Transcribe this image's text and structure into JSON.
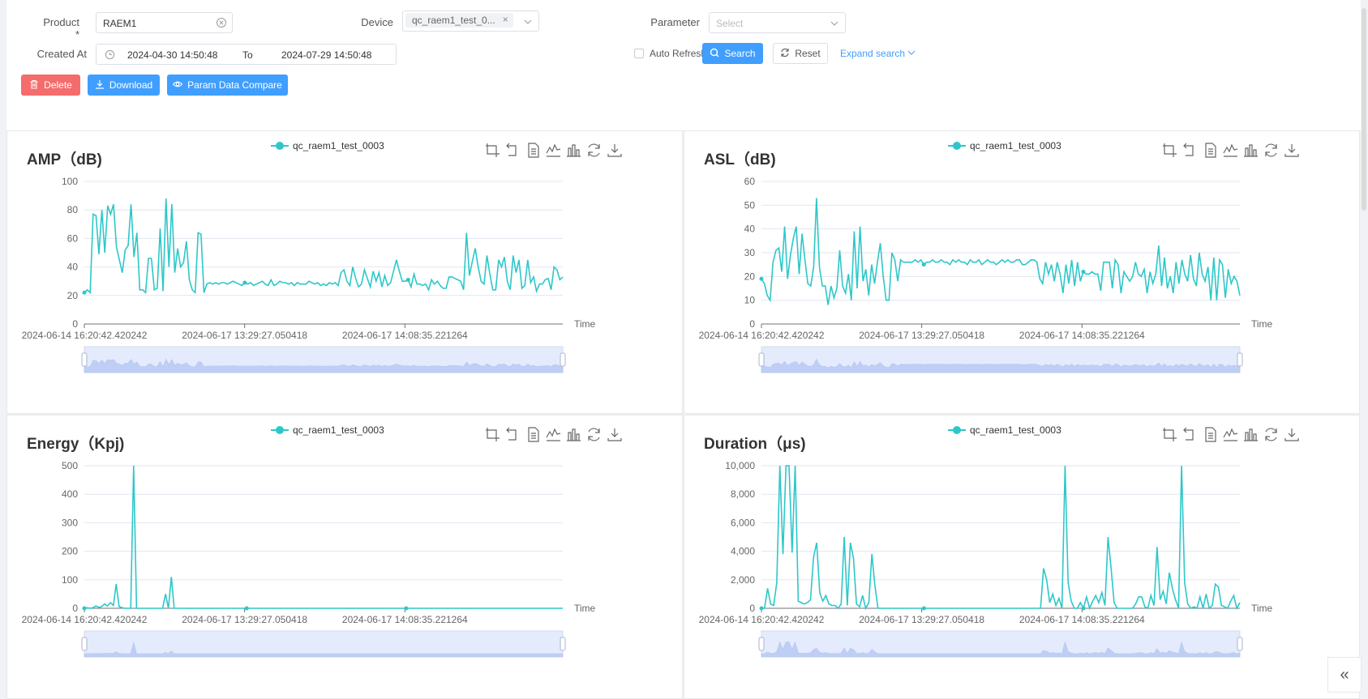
{
  "filters": {
    "product_label": "Product *",
    "product_value": "RAEM1",
    "device_label": "Device",
    "device_tag": "qc_raem1_test_0...",
    "parameter_label": "Parameter",
    "parameter_placeholder": "Select",
    "created_label": "Created At",
    "date_from": "2024-04-30 14:50:48",
    "to_label": "To",
    "date_to": "2024-07-29 14:50:48",
    "auto_refresh_label": "Auto Refresh",
    "search_label": "Search",
    "reset_label": "Reset",
    "expand_label": "Expand search"
  },
  "actions": {
    "delete_label": "Delete",
    "download_label": "Download",
    "compare_label": "Param Data Compare"
  },
  "colors": {
    "series": "#2ec7c9",
    "primary": "#409eff",
    "danger": "#f56c6c"
  },
  "chart_data": [
    {
      "type": "line",
      "title": "AMP（dB)",
      "series_name": "qc_raem1_test_0003",
      "xlabel": "Time",
      "x_ticks": [
        "2024-06-14 16:20:42.420242",
        "2024-06-17 13:29:27.050418",
        "2024-06-17 14:08:35.221264"
      ],
      "yticks": [
        "0",
        "20",
        "40",
        "60",
        "80",
        "100"
      ],
      "ylim": [
        0,
        100
      ],
      "values": [
        22,
        24,
        22,
        77,
        76,
        49,
        80,
        50,
        83,
        77,
        84,
        54,
        45,
        36,
        52,
        55,
        84,
        47,
        64,
        24,
        24,
        22,
        46,
        46,
        24,
        25,
        67,
        23,
        88,
        40,
        84,
        36,
        53,
        40,
        43,
        58,
        31,
        24,
        22,
        64,
        63,
        22,
        28,
        29,
        28,
        29,
        28,
        29,
        29,
        28,
        29,
        30,
        29,
        28,
        27,
        29,
        28,
        29,
        27,
        28,
        29,
        30,
        28,
        27,
        31,
        27,
        28,
        30,
        29,
        29,
        28,
        29,
        27,
        29,
        28,
        28,
        28,
        30,
        29,
        28,
        29,
        27,
        28,
        27,
        29,
        28,
        29,
        27,
        36,
        38,
        30,
        27,
        40,
        32,
        26,
        28,
        38,
        32,
        26,
        37,
        30,
        36,
        26,
        34,
        27,
        29,
        37,
        45,
        37,
        30,
        30,
        31,
        26,
        35,
        28,
        28,
        27,
        28,
        24,
        31,
        28,
        30,
        27,
        25,
        25,
        33,
        33,
        32,
        31,
        30,
        24,
        64,
        34,
        44,
        53,
        40,
        30,
        28,
        48,
        35,
        24,
        24,
        45,
        40,
        47,
        30,
        24,
        48,
        36,
        45,
        25,
        27,
        45,
        29,
        33,
        23,
        28,
        28,
        31,
        32,
        24,
        40,
        38,
        31,
        33
      ]
    },
    {
      "type": "line",
      "title": "ASL（dB)",
      "series_name": "qc_raem1_test_0003",
      "xlabel": "Time",
      "x_ticks": [
        "2024-06-14 16:20:42.420242",
        "2024-06-17 13:29:27.050418",
        "2024-06-17 14:08:35.221264"
      ],
      "yticks": [
        "0",
        "10",
        "20",
        "30",
        "40",
        "50",
        "60"
      ],
      "ylim": [
        0,
        60
      ],
      "values": [
        19,
        17,
        12,
        10,
        26,
        31,
        32,
        22,
        41,
        19,
        29,
        36,
        41,
        21,
        38,
        27,
        17,
        16,
        24,
        53,
        24,
        16,
        16,
        8,
        16,
        11,
        15,
        31,
        16,
        13,
        21,
        10,
        39,
        15,
        41,
        18,
        23,
        12,
        25,
        17,
        26,
        34,
        20,
        10,
        10,
        30,
        27,
        18,
        27,
        26,
        26,
        26,
        26,
        27,
        26,
        27,
        25,
        26,
        26,
        27,
        26,
        26,
        27,
        26,
        26,
        25,
        27,
        26,
        27,
        26,
        26,
        25,
        27,
        26,
        26,
        27,
        25,
        26,
        27,
        26,
        26,
        25,
        26,
        27,
        26,
        27,
        26,
        26,
        27,
        27,
        25,
        25,
        26,
        27,
        27,
        26,
        19,
        17,
        26,
        21,
        25,
        18,
        26,
        21,
        13,
        25,
        17,
        27,
        16,
        26,
        18,
        22,
        21,
        21,
        22,
        21,
        21,
        14,
        26,
        26,
        26,
        15,
        27,
        25,
        13,
        22,
        20,
        18,
        20,
        26,
        21,
        20,
        23,
        13,
        22,
        17,
        21,
        33,
        16,
        28,
        15,
        20,
        13,
        26,
        17,
        27,
        21,
        18,
        29,
        19,
        16,
        30,
        21,
        18,
        24,
        10,
        28,
        10,
        27,
        25,
        11,
        23,
        17,
        20,
        18,
        12
      ]
    },
    {
      "type": "line",
      "title": "Energy（Kpj)",
      "series_name": "qc_raem1_test_0003",
      "xlabel": "Time",
      "x_ticks": [
        "2024-06-14 16:20:42.420242",
        "2024-06-17 13:29:27.050418",
        "2024-06-17 14:08:35.221264"
      ],
      "yticks": [
        "0",
        "100",
        "200",
        "300",
        "400",
        "500"
      ],
      "ylim": [
        0,
        500
      ],
      "values": [
        0,
        2,
        0,
        2,
        8,
        3,
        6,
        15,
        8,
        20,
        10,
        85,
        6,
        2,
        0,
        0,
        0,
        500,
        0,
        0,
        0,
        0,
        0,
        0,
        0,
        0,
        0,
        0,
        50,
        0,
        110,
        0,
        0,
        0,
        0,
        0,
        0,
        0,
        0,
        0,
        0,
        0,
        0,
        0,
        0,
        0,
        0,
        0,
        0,
        0,
        0,
        0,
        0,
        0,
        0,
        0,
        0,
        0,
        0,
        0,
        0,
        0,
        0,
        0,
        0,
        0,
        0,
        0,
        0,
        0,
        0,
        0,
        0,
        0,
        0,
        0,
        0,
        0,
        0,
        0,
        0,
        0,
        0,
        0,
        0,
        0,
        0,
        0,
        0,
        0,
        0,
        0,
        0,
        0,
        0,
        0,
        0,
        0,
        0,
        0,
        0,
        0,
        0,
        0,
        0,
        0,
        0,
        0,
        0,
        0,
        0,
        0,
        0,
        0,
        0,
        0,
        0,
        0,
        0,
        0,
        0,
        0,
        0,
        0,
        0,
        0,
        0,
        0,
        0,
        0,
        0,
        0,
        0,
        0,
        0,
        0,
        0,
        0,
        0,
        0,
        0,
        0,
        0,
        0,
        0,
        0,
        0,
        0,
        0,
        0,
        0,
        0,
        0,
        0,
        0,
        0,
        0,
        0,
        0,
        0,
        0,
        0,
        0,
        0,
        0,
        0
      ]
    },
    {
      "type": "line",
      "title": "Duration（μs)",
      "series_name": "qc_raem1_test_0003",
      "xlabel": "Time",
      "x_ticks": [
        "2024-06-14 16:20:42.420242",
        "2024-06-17 13:29:27.050418",
        "2024-06-17 14:08:35.221264"
      ],
      "yticks": [
        "0",
        "2,000",
        "4,000",
        "6,000",
        "8,000",
        "10,000"
      ],
      "ylim": [
        0,
        10000
      ],
      "values": [
        0,
        0,
        1400,
        300,
        200,
        1800,
        10000,
        3800,
        10000,
        10000,
        3900,
        10000,
        500,
        400,
        300,
        400,
        600,
        3600,
        4600,
        1100,
        500,
        900,
        300,
        200,
        200,
        0,
        300,
        5000,
        200,
        4600,
        3500,
        300,
        100,
        900,
        0,
        400,
        3800,
        1600,
        0,
        0,
        0,
        0,
        0,
        0,
        0,
        0,
        0,
        0,
        0,
        0,
        0,
        0,
        0,
        0,
        0,
        0,
        0,
        0,
        0,
        0,
        0,
        0,
        0,
        0,
        0,
        0,
        0,
        0,
        0,
        0,
        0,
        0,
        0,
        0,
        0,
        0,
        0,
        0,
        0,
        0,
        0,
        0,
        0,
        0,
        0,
        0,
        0,
        0,
        0,
        0,
        0,
        0,
        2800,
        2000,
        400,
        1000,
        200,
        700,
        0,
        10000,
        1800,
        500,
        0,
        0,
        400,
        0,
        800,
        0,
        500,
        900,
        400,
        1100,
        200,
        5000,
        2800,
        400,
        0,
        0,
        0,
        0,
        0,
        0,
        300,
        800,
        800,
        100,
        0,
        900,
        200,
        4300,
        600,
        1200,
        300,
        2500,
        1400,
        600,
        0,
        10000,
        1800,
        300,
        0,
        100,
        0,
        800,
        0,
        1000,
        0,
        200,
        1700,
        1500,
        200,
        100,
        0,
        500,
        900,
        0,
        400
      ]
    }
  ]
}
